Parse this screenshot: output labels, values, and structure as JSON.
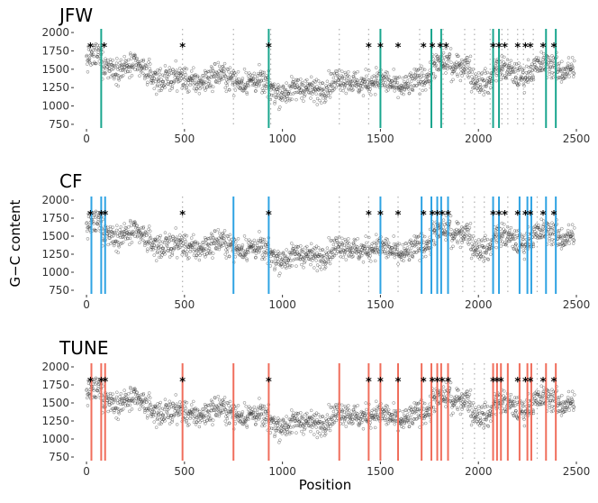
{
  "figure": {
    "ylabel": "G−C content",
    "xlabel": "Position"
  },
  "colors": {
    "JFW": "#1aa68e",
    "CF": "#2ea3e3",
    "TUNE": "#f06e5c",
    "points": "#333333",
    "dotted": "#b0b0b0"
  },
  "chart_data": [
    {
      "type": "scatter",
      "title": "JFW",
      "xlabel": "Position",
      "ylabel": "G−C content",
      "xlim": [
        -60,
        2500
      ],
      "ylim": [
        700,
        2050
      ],
      "xticks": [
        "0",
        "500",
        "1000",
        "1500",
        "2000",
        "2500"
      ],
      "xtick_values": [
        0,
        500,
        1000,
        1500,
        2000,
        2500
      ],
      "yticks": [
        "750",
        "1000",
        "1250",
        "1500",
        "1750",
        "2000"
      ],
      "ytick_values": [
        750,
        1000,
        1250,
        1500,
        1750,
        2000
      ],
      "star_label": "*",
      "star_y": 1840,
      "stars": [
        20,
        90,
        490,
        930,
        1440,
        1500,
        1590,
        1720,
        1765,
        1805,
        1835,
        2075,
        2105,
        2135,
        2200,
        2240,
        2265,
        2330,
        2385
      ],
      "lines": [
        75,
        930,
        1500,
        1760,
        1810,
        2075,
        2105,
        2345,
        2395
      ],
      "dotted": [
        490,
        750,
        940,
        1290,
        1440,
        1700,
        1820,
        1930,
        1980,
        2060,
        2120,
        2150,
        2200,
        2230,
        2280
      ]
    },
    {
      "type": "scatter",
      "title": "CF",
      "xlabel": "Position",
      "ylabel": "G−C content",
      "xlim": [
        -60,
        2500
      ],
      "ylim": [
        700,
        2050
      ],
      "xticks": [
        "0",
        "500",
        "1000",
        "1500",
        "2000",
        "2500"
      ],
      "xtick_values": [
        0,
        500,
        1000,
        1500,
        2000,
        2500
      ],
      "yticks": [
        "750",
        "1000",
        "1250",
        "1500",
        "1750",
        "2000"
      ],
      "ytick_values": [
        750,
        1000,
        1250,
        1500,
        1750,
        2000
      ],
      "star_label": "*",
      "star_y": 1840,
      "stars": [
        20,
        75,
        95,
        490,
        930,
        1440,
        1500,
        1590,
        1720,
        1765,
        1790,
        1815,
        1845,
        2075,
        2105,
        2135,
        2200,
        2240,
        2265,
        2330,
        2385
      ],
      "lines": [
        25,
        75,
        95,
        750,
        930,
        1500,
        1710,
        1760,
        1790,
        1810,
        1845,
        2075,
        2105,
        2210,
        2250,
        2270,
        2345,
        2395
      ],
      "dotted": [
        490,
        1290,
        1440,
        1590,
        1920,
        1980,
        2030,
        2150,
        2300
      ]
    },
    {
      "type": "scatter",
      "title": "TUNE",
      "xlabel": "Position",
      "ylabel": "G−C content",
      "xlim": [
        -60,
        2500
      ],
      "ylim": [
        700,
        2050
      ],
      "xticks": [
        "0",
        "500",
        "1000",
        "1500",
        "2000",
        "2500"
      ],
      "xtick_values": [
        0,
        500,
        1000,
        1500,
        2000,
        2500
      ],
      "yticks": [
        "750",
        "1000",
        "1250",
        "1500",
        "1750",
        "2000"
      ],
      "ytick_values": [
        750,
        1000,
        1250,
        1500,
        1750,
        2000
      ],
      "star_label": "*",
      "star_y": 1840,
      "stars": [
        20,
        75,
        95,
        490,
        930,
        1440,
        1500,
        1590,
        1720,
        1765,
        1790,
        1815,
        1845,
        2075,
        2095,
        2115,
        2200,
        2240,
        2265,
        2330,
        2385
      ],
      "lines": [
        25,
        75,
        95,
        490,
        750,
        930,
        1290,
        1440,
        1500,
        1590,
        1710,
        1760,
        1790,
        1810,
        1845,
        2075,
        2095,
        2115,
        2150,
        2210,
        2250,
        2270,
        2345,
        2395
      ],
      "dotted": [
        1920,
        1980,
        2030,
        2300
      ]
    }
  ]
}
